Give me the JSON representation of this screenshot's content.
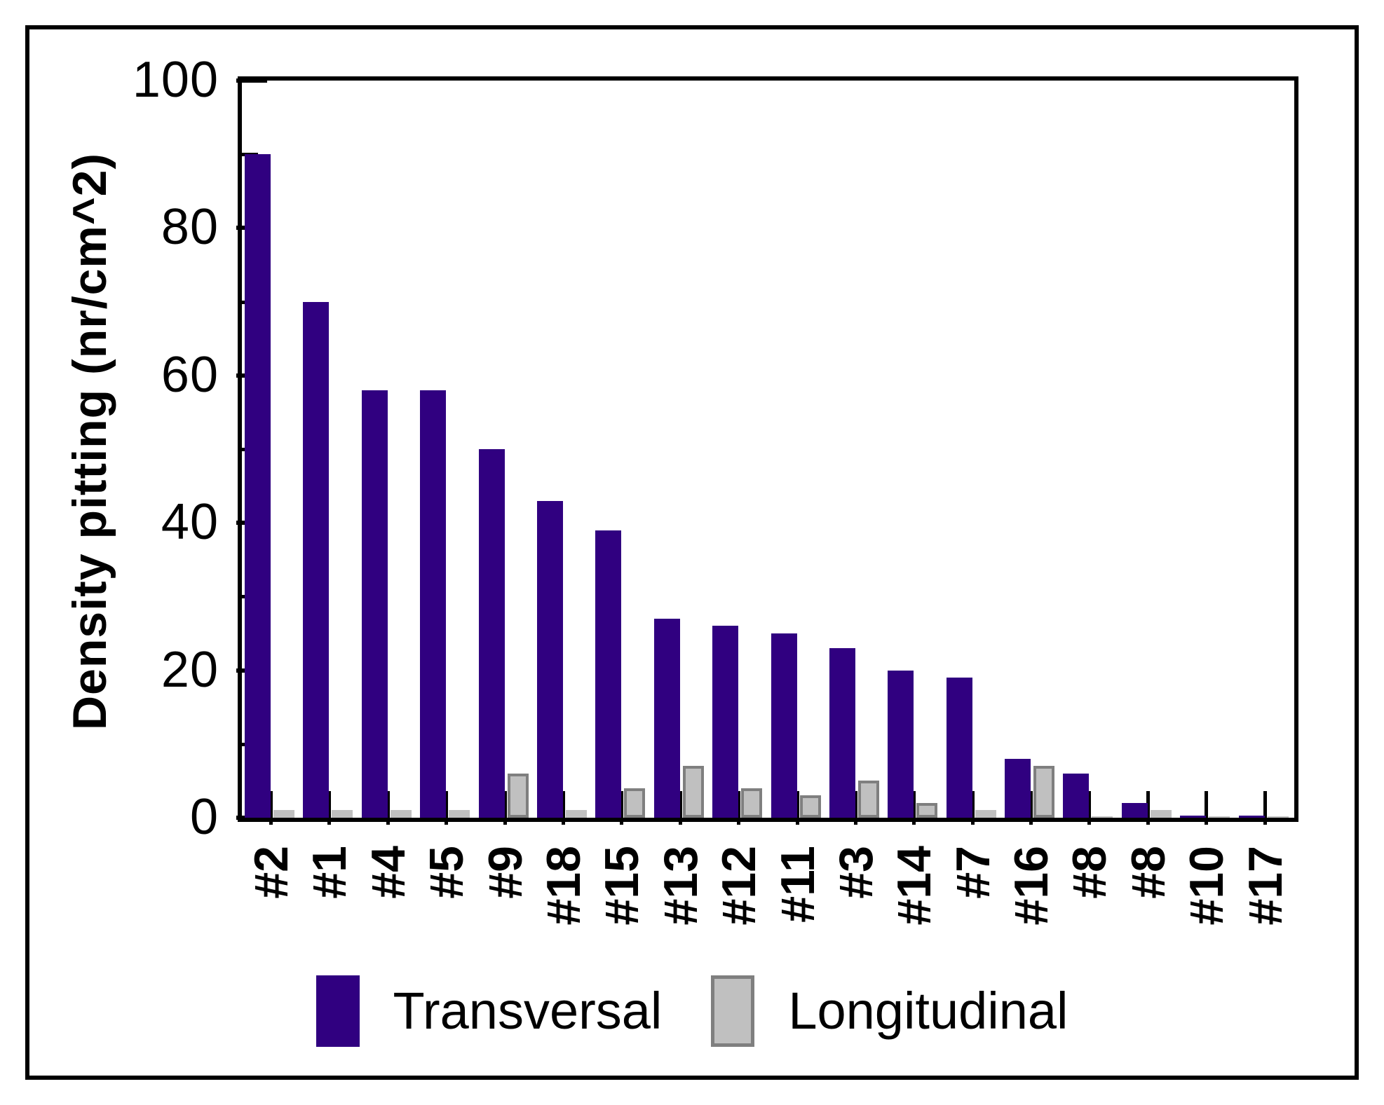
{
  "figure": {
    "y_axis": {
      "title": "Density pitting  (nr/cm^2)",
      "major_ticks": [
        0,
        20,
        40,
        60,
        80,
        100
      ],
      "minor_ticks": [
        10,
        30,
        50,
        70,
        90
      ],
      "min": 0,
      "max": 100
    },
    "colors": {
      "transversal": "#300080",
      "longitudinal_fill": "#C0C0C0",
      "longitudinal_border": "#7F7F7F",
      "axis": "#000000",
      "background": "#FFFFFF"
    },
    "legend": {
      "transversal_label": "Transversal",
      "longitudinal_label": "Longitudinal"
    }
  },
  "chart_data": {
    "type": "bar",
    "title": "",
    "xlabel": "",
    "ylabel": "Density pitting (nr/cm^2)",
    "ylim": [
      0,
      100
    ],
    "grid": false,
    "legend_position": "bottom",
    "categories": [
      "#2",
      "#1",
      "#4",
      "#5",
      "#9",
      "#18",
      "#15",
      "#13",
      "#12",
      "#11",
      "#3",
      "#14",
      "#7",
      "#16",
      "#8",
      "#8",
      "#10",
      "#17"
    ],
    "series": [
      {
        "name": "Transversal",
        "color": "#300080",
        "values": [
          90,
          70,
          58,
          58,
          50,
          43,
          39,
          27,
          26,
          25,
          23,
          20,
          19,
          8,
          6,
          2,
          0.3,
          0.3
        ]
      },
      {
        "name": "Longitudinal",
        "color": "#C0C0C0",
        "values": [
          1,
          1,
          1,
          1,
          6,
          1,
          4,
          7,
          4,
          3,
          5,
          2,
          1,
          7,
          0.2,
          1,
          0.2,
          0.2
        ]
      }
    ]
  }
}
